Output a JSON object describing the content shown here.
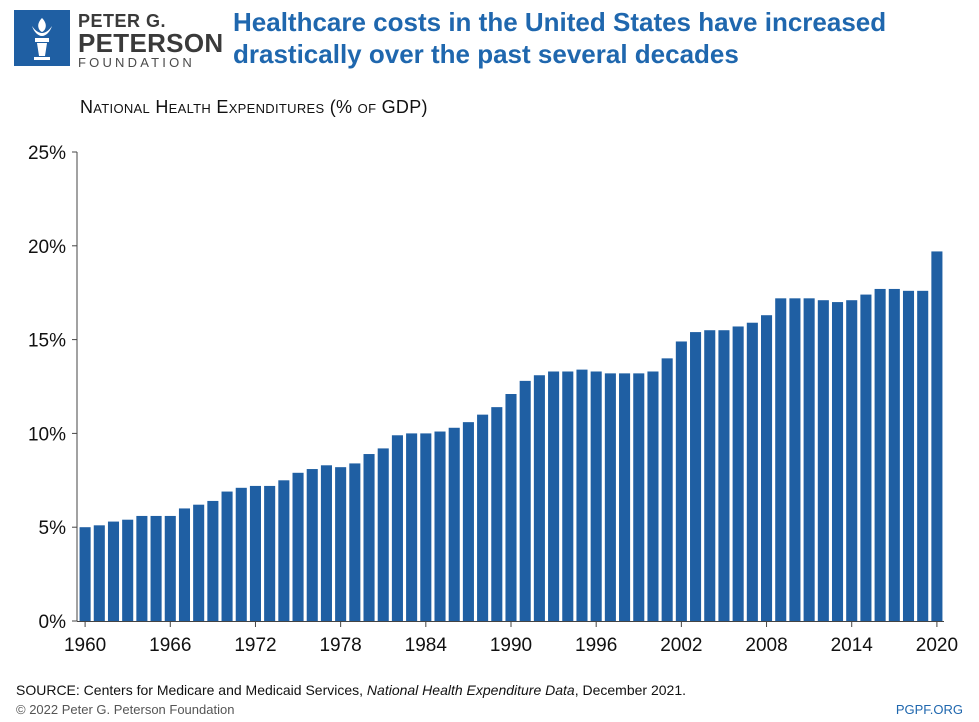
{
  "logo": {
    "line1": "PETER G.",
    "line2": "PETERSON",
    "line3": "FOUNDATION",
    "icon": "torch-icon"
  },
  "headline": "Healthcare costs in the United States have increased drastically over the past several decades",
  "chart_data": {
    "type": "bar",
    "title": "National Health Expenditures (% of GDP)",
    "xlabel": "",
    "ylabel": "",
    "ylim": [
      0,
      25
    ],
    "y_ticks": [
      "0%",
      "5%",
      "10%",
      "15%",
      "20%",
      "25%"
    ],
    "x_tick_labels": [
      "1960",
      "1966",
      "1972",
      "1978",
      "1984",
      "1990",
      "1996",
      "2002",
      "2008",
      "2014",
      "2020"
    ],
    "bar_color": "#1f5fa3",
    "grid": false,
    "categories": [
      1960,
      1961,
      1962,
      1963,
      1964,
      1965,
      1966,
      1967,
      1968,
      1969,
      1970,
      1971,
      1972,
      1973,
      1974,
      1975,
      1976,
      1977,
      1978,
      1979,
      1980,
      1981,
      1982,
      1983,
      1984,
      1985,
      1986,
      1987,
      1988,
      1989,
      1990,
      1991,
      1992,
      1993,
      1994,
      1995,
      1996,
      1997,
      1998,
      1999,
      2000,
      2001,
      2002,
      2003,
      2004,
      2005,
      2006,
      2007,
      2008,
      2009,
      2010,
      2011,
      2012,
      2013,
      2014,
      2015,
      2016,
      2017,
      2018,
      2019,
      2020
    ],
    "values": [
      5.0,
      5.1,
      5.3,
      5.4,
      5.6,
      5.6,
      5.6,
      6.0,
      6.2,
      6.4,
      6.9,
      7.1,
      7.2,
      7.2,
      7.5,
      7.9,
      8.1,
      8.3,
      8.2,
      8.4,
      8.9,
      9.2,
      9.9,
      10.0,
      10.0,
      10.1,
      10.3,
      10.6,
      11.0,
      11.4,
      12.1,
      12.8,
      13.1,
      13.3,
      13.3,
      13.4,
      13.3,
      13.2,
      13.2,
      13.2,
      13.3,
      14.0,
      14.9,
      15.4,
      15.5,
      15.5,
      15.7,
      15.9,
      16.3,
      17.2,
      17.2,
      17.2,
      17.1,
      17.0,
      17.1,
      17.4,
      17.7,
      17.7,
      17.6,
      17.6,
      19.7
    ]
  },
  "footer": {
    "source_prefix": "SOURCE: Centers for Medicare and Medicaid Services, ",
    "source_title": "National Health Expenditure Data",
    "source_suffix": ", December 2021.",
    "copyright": "© 2022 Peter G. Peterson Foundation",
    "site": "PGPF.ORG"
  }
}
